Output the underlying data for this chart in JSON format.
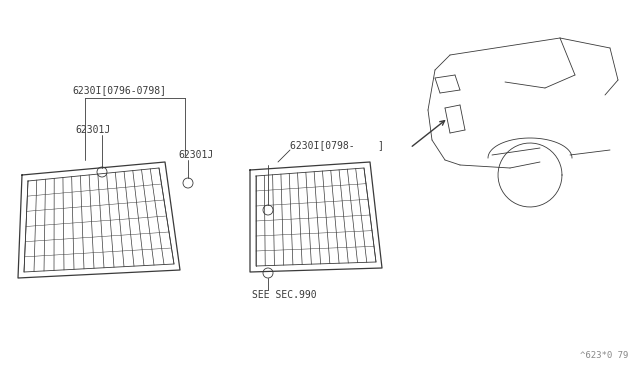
{
  "bg_color": "#ffffff",
  "line_color": "#3a3a3a",
  "label_color": "#3a3a3a",
  "fig_width": 6.4,
  "fig_height": 3.72,
  "watermark": "^623*0 79",
  "labels": {
    "part1": "6230I[0796-0798]",
    "part2a": "62301J",
    "part2b": "62301J",
    "part3": "6230I[0798-    ]",
    "see_sec": "SEE SEC.990"
  }
}
